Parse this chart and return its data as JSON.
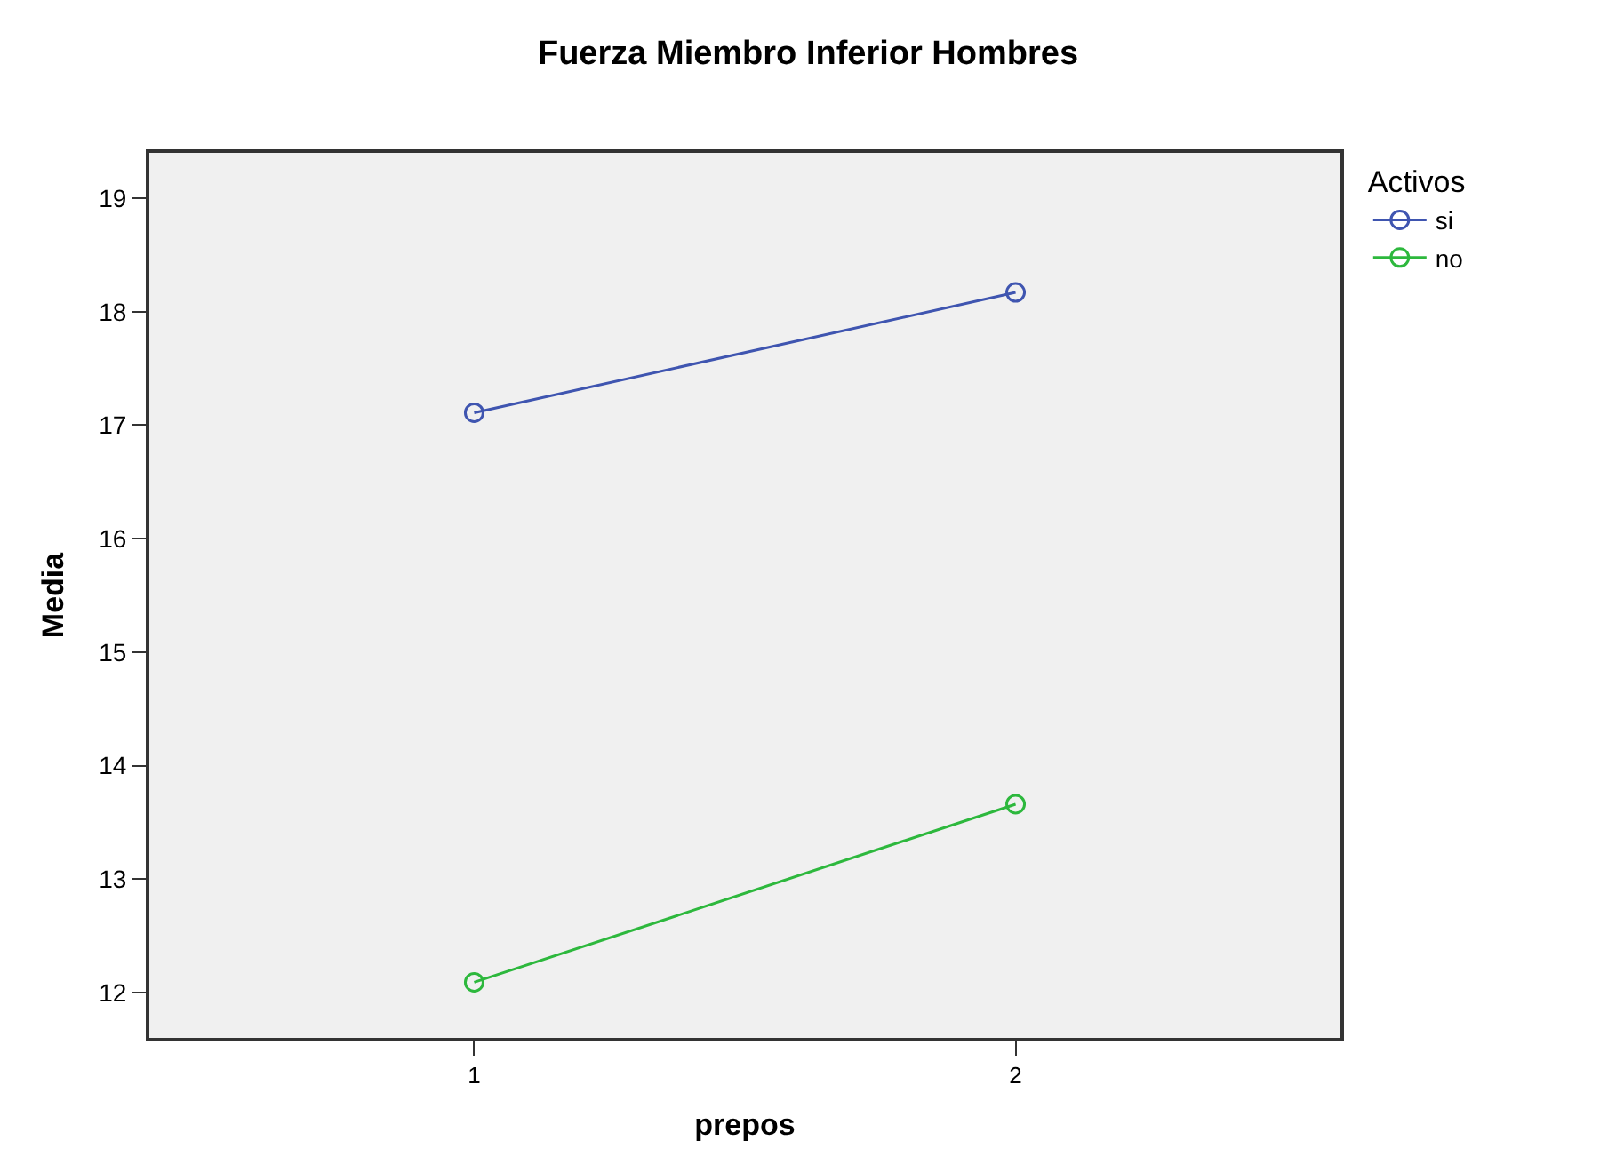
{
  "chart_data": {
    "type": "line",
    "title": "Fuerza Miembro Inferior Hombres",
    "xlabel": "prepos",
    "ylabel": "Media",
    "legend_title": "Activos",
    "categories": [
      "1",
      "2"
    ],
    "series": [
      {
        "name": "si",
        "color": "#3f55b0",
        "values": [
          17.11,
          18.17
        ]
      },
      {
        "name": "no",
        "color": "#2db83d",
        "values": [
          12.09,
          13.66
        ]
      }
    ],
    "ylim": [
      11.6,
      19.4
    ],
    "yticks": [
      12,
      13,
      14,
      15,
      16,
      17,
      18,
      19
    ],
    "grid": false,
    "legend": "top right",
    "marker": "circle",
    "line_style": "solid"
  }
}
